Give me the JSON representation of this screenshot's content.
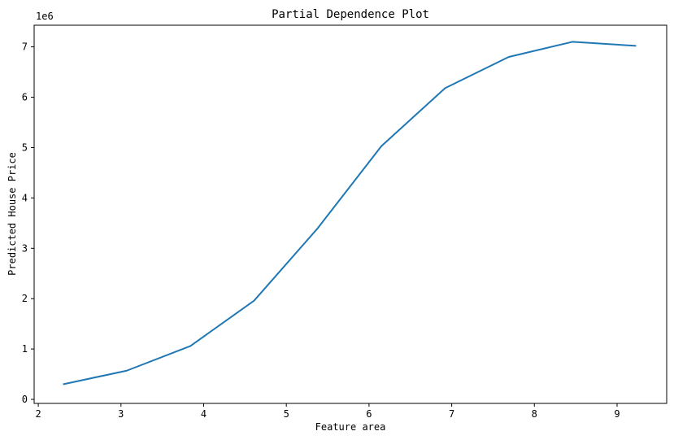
{
  "chart_data": {
    "type": "line",
    "title": "Partial Dependence Plot",
    "xlabel": "Feature area",
    "ylabel": "Predicted House Price",
    "y_offset_text": "1e6",
    "xlim": [
      1.95,
      9.6
    ],
    "ylim": [
      -0.08,
      7.43
    ],
    "xticks": [
      2,
      3,
      4,
      5,
      6,
      7,
      8,
      9
    ],
    "yticks": [
      0,
      1,
      2,
      3,
      4,
      5,
      6,
      7
    ],
    "grid": false,
    "series": [
      {
        "color": "#1f77b4",
        "x": [
          2.3,
          3.07,
          3.84,
          4.61,
          5.38,
          6.15,
          6.92,
          7.69,
          8.46,
          9.23
        ],
        "y": [
          0.3,
          0.57,
          1.06,
          1.96,
          3.4,
          5.03,
          6.18,
          6.8,
          7.1,
          7.02
        ]
      }
    ]
  }
}
